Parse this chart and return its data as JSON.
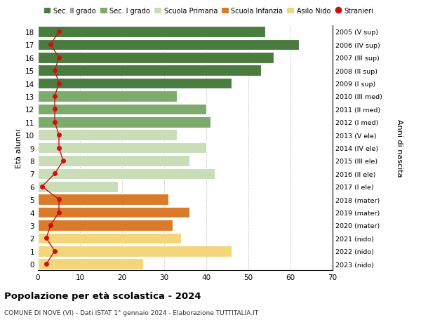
{
  "ages": [
    18,
    17,
    16,
    15,
    14,
    13,
    12,
    11,
    10,
    9,
    8,
    7,
    6,
    5,
    4,
    3,
    2,
    1,
    0
  ],
  "bar_values": [
    54,
    62,
    56,
    53,
    46,
    33,
    40,
    41,
    33,
    40,
    36,
    42,
    19,
    31,
    36,
    32,
    34,
    46,
    25
  ],
  "bar_colors": [
    "#4a7c3f",
    "#4a7c3f",
    "#4a7c3f",
    "#4a7c3f",
    "#4a7c3f",
    "#7dab6b",
    "#7dab6b",
    "#7dab6b",
    "#c8ddb8",
    "#c8ddb8",
    "#c8ddb8",
    "#c8ddb8",
    "#c8ddb8",
    "#d97b2a",
    "#d97b2a",
    "#d97b2a",
    "#f5d57a",
    "#f5d57a",
    "#f5d57a"
  ],
  "stranieri_values": [
    5,
    3,
    5,
    4,
    5,
    4,
    4,
    4,
    5,
    5,
    6,
    4,
    1,
    5,
    5,
    3,
    2,
    4,
    2
  ],
  "right_labels": [
    "2005 (V sup)",
    "2006 (IV sup)",
    "2007 (III sup)",
    "2008 (II sup)",
    "2009 (I sup)",
    "2010 (III med)",
    "2011 (II med)",
    "2012 (I med)",
    "2013 (V ele)",
    "2014 (IV ele)",
    "2015 (III ele)",
    "2016 (II ele)",
    "2017 (I ele)",
    "2018 (mater)",
    "2019 (mater)",
    "2020 (mater)",
    "2021 (nido)",
    "2022 (nido)",
    "2023 (nido)"
  ],
  "legend_labels": [
    "Sec. II grado",
    "Sec. I grado",
    "Scuola Primaria",
    "Scuola Infanzia",
    "Asilo Nido",
    "Stranieri"
  ],
  "legend_colors": [
    "#4a7c3f",
    "#7dab6b",
    "#c8ddb8",
    "#d97b2a",
    "#f5d57a",
    "#cc1111"
  ],
  "ylabel_left": "Età alunni",
  "ylabel_right": "Anni di nascita",
  "title": "Popolazione per età scolastica - 2024",
  "subtitle": "COMUNE DI NOVE (VI) - Dati ISTAT 1° gennaio 2024 - Elaborazione TUTTITALIA.IT",
  "xlim": [
    0,
    70
  ],
  "xticks": [
    0,
    10,
    20,
    30,
    40,
    50,
    60,
    70
  ],
  "stranieri_color": "#cc1111",
  "grid_color": "#cccccc"
}
